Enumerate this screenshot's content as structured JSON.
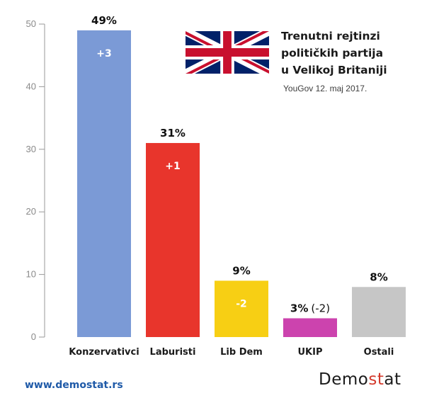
{
  "chart_data": {
    "type": "bar",
    "title_lines": [
      "Trenutni rejtinzi",
      "političkih partija",
      "u Velikoj Britaniji"
    ],
    "source": "YouGov 12. maj 2017.",
    "categories": [
      "Konzervativci",
      "Laburisti",
      "Lib Dem",
      "UKIP",
      "Ostali"
    ],
    "values": [
      49,
      31,
      9,
      3,
      8
    ],
    "value_labels": [
      "49%",
      "31%",
      "9%",
      "3%",
      "8%"
    ],
    "value_notes": [
      "",
      "",
      "",
      "(-2)",
      ""
    ],
    "changes": [
      "+3",
      "+1",
      "-2",
      "",
      ""
    ],
    "colors": [
      "#7b9ad6",
      "#e8352c",
      "#f7cf14",
      "#cc43ae",
      "#c6c6c6"
    ],
    "yticks": [
      0,
      10,
      20,
      30,
      40,
      50
    ],
    "ylim": [
      0,
      50
    ],
    "grid": false,
    "legend": "none"
  },
  "footer": {
    "url": "www.demostat.rs",
    "brand_main": "Demo",
    "brand_accent": "st",
    "brand_end": "at"
  }
}
